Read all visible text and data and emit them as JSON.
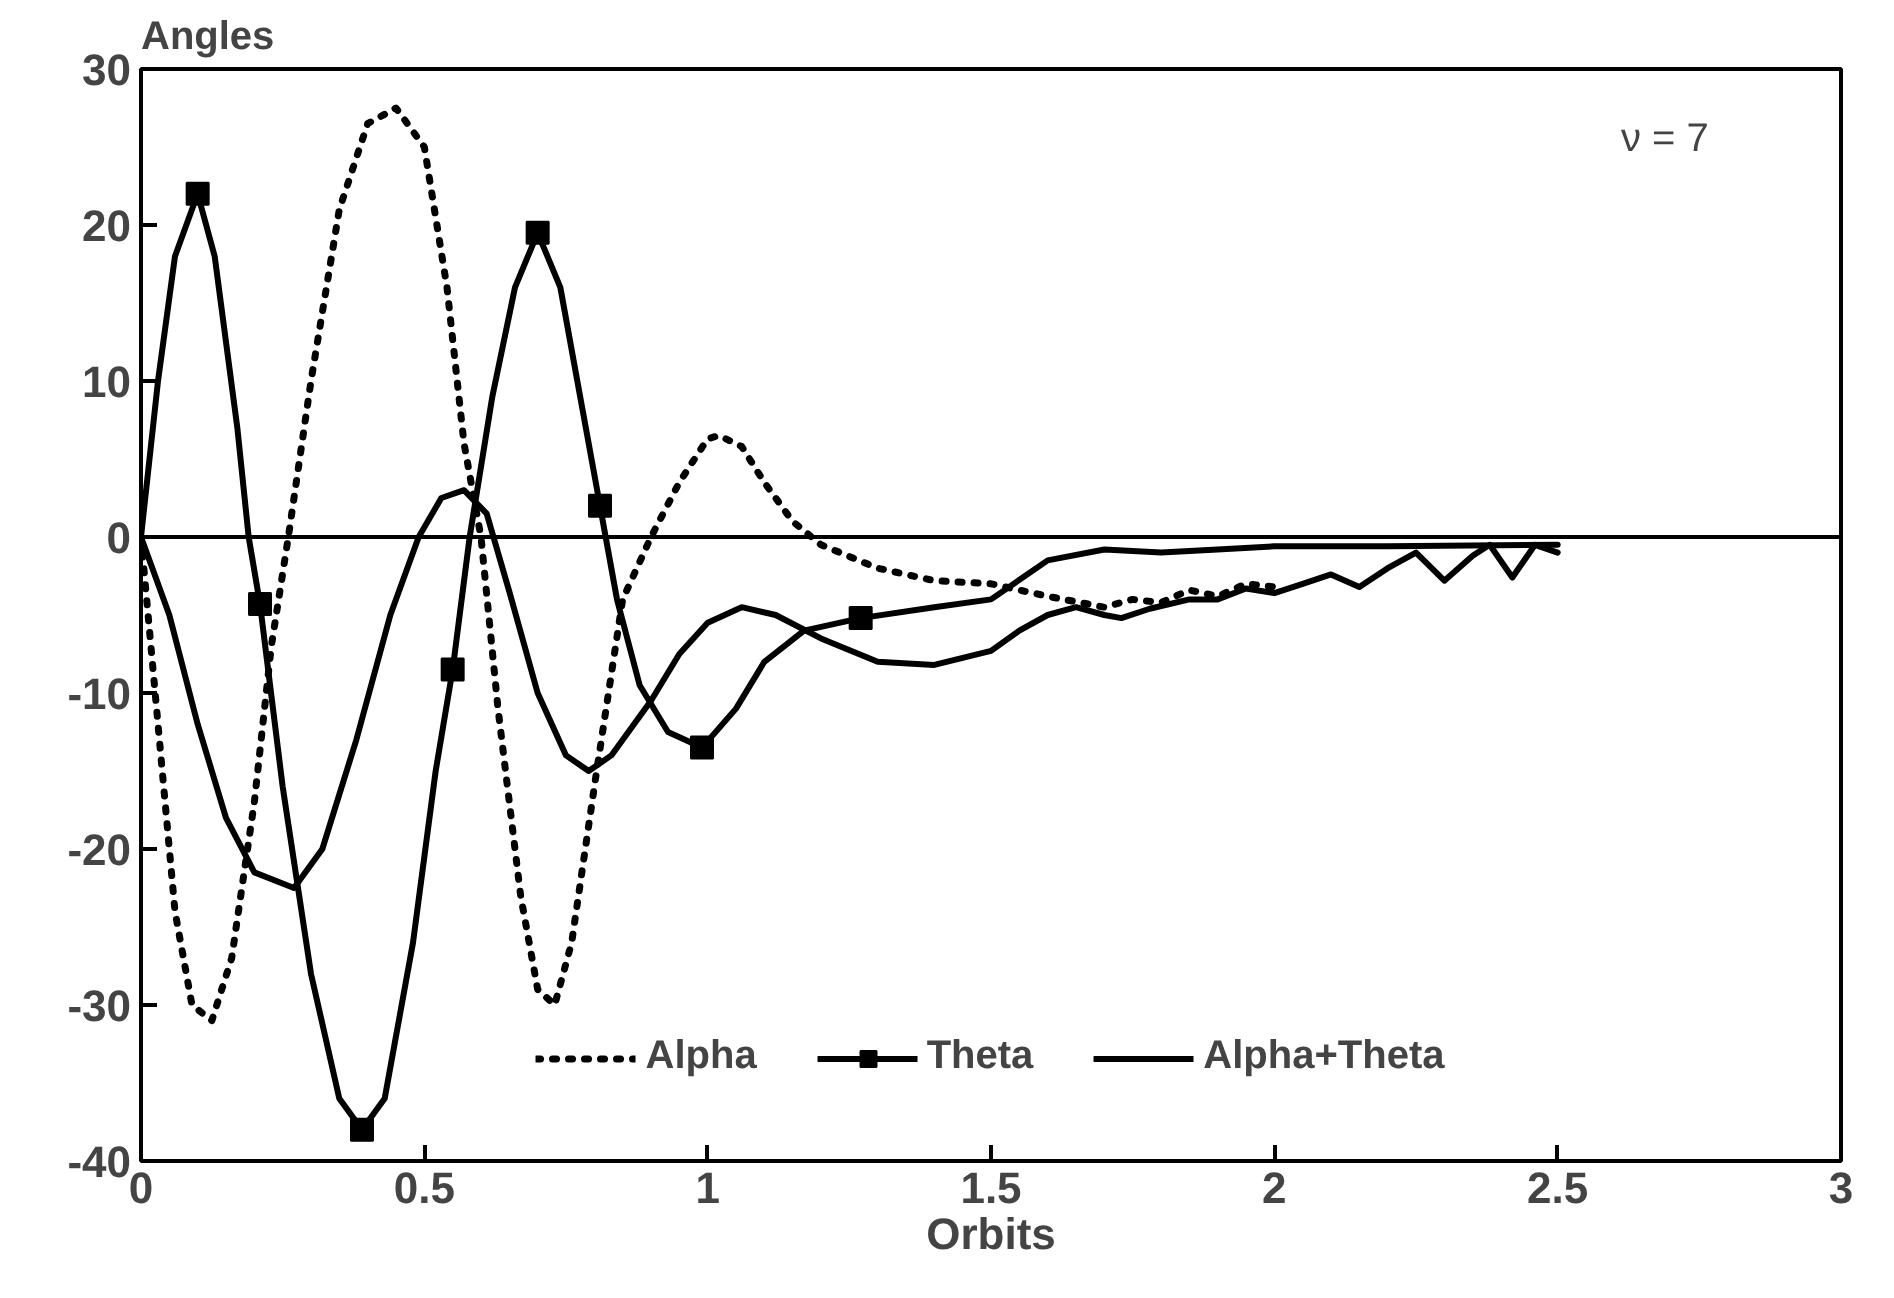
{
  "chart_data": {
    "type": "line",
    "xlabel": "Orbits",
    "ylabel": "Angles",
    "xlim": [
      0,
      3
    ],
    "xticks": [
      0,
      0.5,
      1,
      1.5,
      2,
      2.5,
      3
    ],
    "ylim": [
      -40,
      30
    ],
    "yticks": [
      -40,
      -30,
      -20,
      -10,
      0,
      10,
      20,
      30
    ],
    "grid": false,
    "legend": "bottom",
    "annotations": [
      "ν = 7"
    ],
    "ref_lines": [
      {
        "axis": "y",
        "value": 0,
        "label": null,
        "color": "#000000"
      }
    ],
    "series": [
      {
        "name": "Alpha",
        "color": "#000000",
        "line_style": "dotted",
        "x": [
          0,
          0.03,
          0.06,
          0.09,
          0.125,
          0.16,
          0.2,
          0.23,
          0.26,
          0.3,
          0.35,
          0.4,
          0.45,
          0.5,
          0.54,
          0.57,
          0.6,
          0.63,
          0.67,
          0.7,
          0.73,
          0.76,
          0.8,
          0.85,
          0.9,
          0.95,
          1.0,
          1.02,
          1.06,
          1.1,
          1.15,
          1.2,
          1.3,
          1.4,
          1.5,
          1.6,
          1.7,
          1.75,
          1.8,
          1.85,
          1.9,
          1.95,
          2.0
        ],
        "values": [
          0,
          -12,
          -24,
          -30,
          -31,
          -27,
          -17,
          -7,
          0,
          10,
          21,
          26.5,
          27.5,
          25,
          16,
          6,
          0,
          -11,
          -23,
          -29,
          -30,
          -26,
          -16,
          -4,
          0,
          3.5,
          6.3,
          6.5,
          5.8,
          3.5,
          1,
          -0.5,
          -2,
          -2.8,
          -3,
          -3.8,
          -4.5,
          -4,
          -4.2,
          -3.4,
          -3.8,
          -3,
          -3.2
        ]
      },
      {
        "name": "Theta",
        "color": "#000000",
        "line_style": "solid",
        "x": [
          0,
          0.03,
          0.06,
          0.1,
          0.13,
          0.17,
          0.19,
          0.21,
          0.25,
          0.3,
          0.35,
          0.39,
          0.43,
          0.48,
          0.52,
          0.55,
          0.58,
          0.62,
          0.66,
          0.7,
          0.74,
          0.78,
          0.81,
          0.84,
          0.88,
          0.93,
          0.99,
          1.05,
          1.1,
          1.17,
          1.27,
          1.4,
          1.5,
          1.6,
          1.7,
          1.8,
          1.9,
          2.0,
          2.2,
          2.5
        ],
        "values": [
          0,
          10,
          18,
          22,
          18,
          7,
          0,
          -4.3,
          -16,
          -28,
          -36,
          -38,
          -36,
          -26,
          -15,
          -8.5,
          0,
          9,
          16,
          19.5,
          16,
          8,
          2,
          -4,
          -9.5,
          -12.5,
          -13.5,
          -11,
          -8,
          -6,
          -5.2,
          -4.5,
          -4,
          -1.5,
          -0.8,
          -1,
          -0.8,
          -0.6,
          -0.6,
          -0.5
        ]
      },
      {
        "type": "scatter",
        "color": "#000000",
        "marker": "square",
        "x": [
          0.1,
          0.21,
          0.39,
          0.55,
          0.7,
          0.81,
          0.99,
          1.27
        ],
        "values": [
          22,
          -4.3,
          -38,
          -8.5,
          19.5,
          2,
          -13.5,
          -5.2
        ]
      },
      {
        "name": "Alpha+Theta",
        "color": "#000000",
        "line_style": "solid",
        "x": [
          0,
          0.05,
          0.1,
          0.15,
          0.2,
          0.27,
          0.32,
          0.38,
          0.44,
          0.49,
          0.53,
          0.57,
          0.61,
          0.65,
          0.7,
          0.75,
          0.79,
          0.83,
          0.9,
          0.95,
          1.0,
          1.06,
          1.12,
          1.2,
          1.3,
          1.4,
          1.5,
          1.55,
          1.6,
          1.65,
          1.7,
          1.73,
          1.78,
          1.85,
          1.9,
          1.95,
          2.0,
          2.05,
          2.1,
          2.15,
          2.2,
          2.25,
          2.3,
          2.35,
          2.38,
          2.42,
          2.46,
          2.5
        ],
        "values": [
          0,
          -5,
          -12,
          -18,
          -21.5,
          -22.5,
          -20,
          -13,
          -5,
          0,
          2.5,
          3,
          1.5,
          -3.5,
          -10,
          -14,
          -15,
          -14,
          -10.5,
          -7.5,
          -5.5,
          -4.5,
          -5,
          -6.5,
          -8,
          -8.2,
          -7.3,
          -6,
          -5,
          -4.5,
          -5,
          -5.2,
          -4.6,
          -4,
          -4,
          -3.3,
          -3.6,
          -3,
          -2.4,
          -3.2,
          -2,
          -1,
          -2.8,
          -1.2,
          -0.5,
          -2.6,
          -0.5,
          -1
        ]
      }
    ]
  }
}
